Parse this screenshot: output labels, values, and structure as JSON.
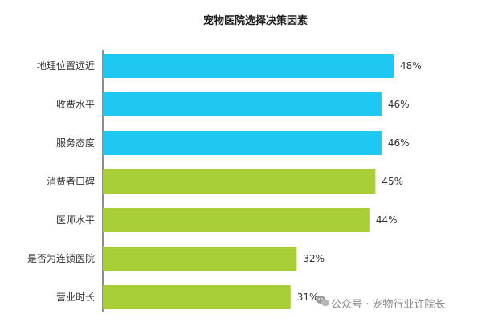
{
  "chart_data": {
    "type": "bar",
    "orientation": "horizontal",
    "title": "宠物医院选择决策因素",
    "categories": [
      "地理位置远近",
      "收费水平",
      "服务态度",
      "消费者口碑",
      "医师水平",
      "是否为连锁医院",
      "营业时长"
    ],
    "values": [
      48,
      46,
      46,
      45,
      44,
      32,
      31
    ],
    "value_labels": [
      "48%",
      "46%",
      "46%",
      "45%",
      "44%",
      "32%",
      "31%"
    ],
    "unit": "%",
    "xlim": [
      0,
      50
    ],
    "bar_colors": [
      "#1ec8f0",
      "#1ec8f0",
      "#1ec8f0",
      "#a8cf38",
      "#a8cf38",
      "#a8cf38",
      "#a8cf38"
    ],
    "grid": false,
    "legend": "none"
  },
  "watermark": {
    "icon": "wechat-icon",
    "text": "公众号 · 宠物行业许院长"
  }
}
